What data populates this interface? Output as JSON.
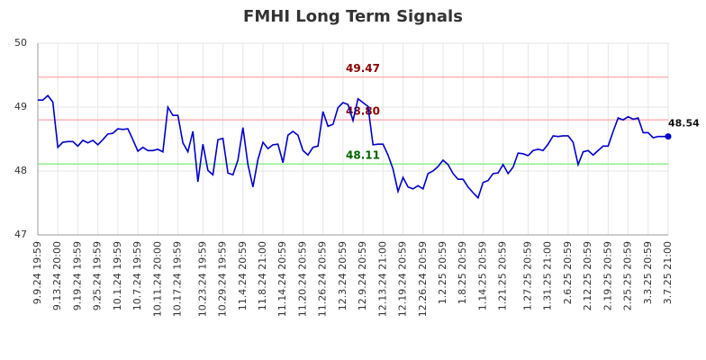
{
  "chart_data": {
    "type": "line",
    "title": "FMHI Long Term Signals",
    "categories": [
      "9.9.24 19:59",
      null,
      null,
      null,
      "9.13.24 20:00",
      null,
      null,
      null,
      "9.19.24 19:59",
      null,
      null,
      null,
      "9.25.24 19:59",
      null,
      null,
      null,
      "10.1.24 19:59",
      null,
      null,
      null,
      "10.7.24 19:59",
      null,
      null,
      null,
      "10.11.24 20:00",
      null,
      null,
      null,
      "10.17.24 19:59",
      null,
      null,
      null,
      null,
      "10.23.24 19:59",
      null,
      null,
      null,
      "10.29.24 19:59",
      null,
      null,
      null,
      "11.4.24 20:59",
      null,
      null,
      null,
      "11.8.24 21:00",
      null,
      null,
      null,
      "11.14.24 20:59",
      null,
      null,
      null,
      "11.20.24 20:59",
      null,
      null,
      null,
      "11.26.24 20:59",
      null,
      null,
      null,
      "12.3.24 20:59",
      null,
      null,
      null,
      "12.9.24 20:59",
      null,
      null,
      null,
      "12.13.24 21:00",
      null,
      null,
      null,
      "12.19.24 20:59",
      null,
      null,
      null,
      "12.26.24 20:59",
      null,
      null,
      null,
      "1.2.25 20:59",
      null,
      null,
      null,
      "1.8.25 20:59",
      null,
      null,
      null,
      "1.14.25 20:59",
      null,
      null,
      null,
      "1.21.25 20:59",
      null,
      null,
      null,
      null,
      "1.27.25 20:59",
      null,
      null,
      null,
      "1.31.25 21:00",
      null,
      null,
      null,
      "2.6.25 20:59",
      null,
      null,
      null,
      "2.12.25 20:59",
      null,
      null,
      null,
      "2.19.25 20:59",
      null,
      null,
      null,
      "2.25.25 20:59",
      null,
      null,
      null,
      "3.3.25 20:59",
      null,
      null,
      null,
      "3.7.25 21:00"
    ],
    "series": [
      {
        "color": "#0000cc",
        "values": [
          49.11,
          49.11,
          49.18,
          49.08,
          48.37,
          48.45,
          48.46,
          48.46,
          48.39,
          48.48,
          48.44,
          48.48,
          48.41,
          48.49,
          48.58,
          48.59,
          48.66,
          48.65,
          48.66,
          48.49,
          48.31,
          48.37,
          48.32,
          48.32,
          48.34,
          48.3,
          49.0,
          48.87,
          48.87,
          48.44,
          48.3,
          48.62,
          47.83,
          48.42,
          48.01,
          47.94,
          48.49,
          48.51,
          47.97,
          47.94,
          48.17,
          48.68,
          48.1,
          47.75,
          48.18,
          48.45,
          48.35,
          48.41,
          48.42,
          48.13,
          48.56,
          48.62,
          48.56,
          48.32,
          48.25,
          48.37,
          48.39,
          48.93,
          48.7,
          48.73,
          48.99,
          49.07,
          49.04,
          48.79,
          49.13,
          49.07,
          49.01,
          48.41,
          48.42,
          48.42,
          48.25,
          48.03,
          47.68,
          47.9,
          47.75,
          47.72,
          47.77,
          47.72,
          47.96,
          48.0,
          48.07,
          48.17,
          48.1,
          47.96,
          47.87,
          47.87,
          47.75,
          47.66,
          47.58,
          47.82,
          47.85,
          47.96,
          47.97,
          48.1,
          47.96,
          48.06,
          48.28,
          48.27,
          48.24,
          48.32,
          48.34,
          48.32,
          48.42,
          48.55,
          48.54,
          48.55,
          48.55,
          48.45,
          48.1,
          48.3,
          48.32,
          48.25,
          48.32,
          48.39,
          48.39,
          48.62,
          48.83,
          48.8,
          48.85,
          48.81,
          48.83,
          48.6,
          48.6,
          48.52,
          48.54,
          48.54,
          48.54
        ],
        "last_value_label": "48.54"
      }
    ],
    "hlines": [
      {
        "value": 49.47,
        "label": "49.47",
        "color": "#ffb3b3",
        "label_color": "#8b0000"
      },
      {
        "value": 48.8,
        "label": "48.80",
        "color": "#ffb3b3",
        "label_color": "#8b0000"
      },
      {
        "value": 48.11,
        "label": "48.11",
        "color": "#90ee90",
        "label_color": "#006400"
      }
    ],
    "ylim": [
      47,
      50
    ],
    "yticks": [
      47,
      48,
      49,
      50
    ],
    "grid": true
  }
}
